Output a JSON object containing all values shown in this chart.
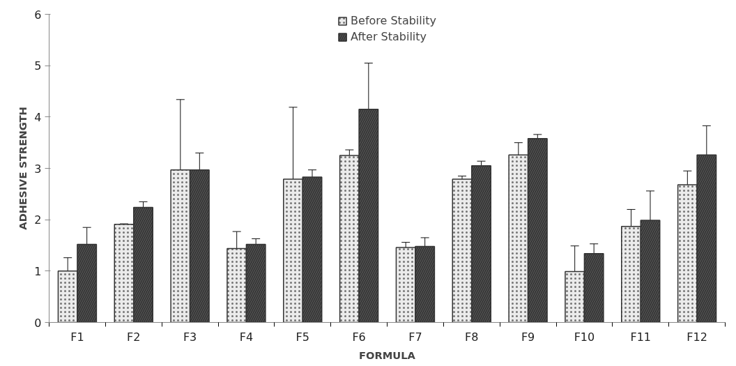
{
  "chart_data": {
    "type": "bar",
    "xlabel": "FORMULA",
    "ylabel": "ADHESIVE STRENGTH",
    "categories": [
      "F1",
      "F2",
      "F3",
      "F4",
      "F5",
      "F6",
      "F7",
      "F8",
      "F9",
      "F10",
      "F11",
      "F12"
    ],
    "series": [
      {
        "name": "Before Stability",
        "color": "#ebebeb",
        "values": [
          1.0,
          1.91,
          2.97,
          1.44,
          2.79,
          3.25,
          1.46,
          2.79,
          3.26,
          0.99,
          1.87,
          2.68
        ],
        "errors": [
          0.26,
          0.01,
          1.37,
          0.33,
          1.4,
          0.11,
          0.1,
          0.06,
          0.24,
          0.5,
          0.33,
          0.27
        ]
      },
      {
        "name": "After Stability",
        "color": "#4d4d4d",
        "values": [
          1.52,
          2.24,
          2.97,
          1.52,
          2.83,
          4.15,
          1.48,
          3.05,
          3.58,
          1.34,
          1.99,
          3.26
        ],
        "errors": [
          0.33,
          0.11,
          0.33,
          0.11,
          0.14,
          0.9,
          0.17,
          0.09,
          0.08,
          0.19,
          0.57,
          0.57
        ]
      }
    ],
    "ylim": [
      0,
      6
    ],
    "yticks": [
      0,
      1,
      2,
      3,
      4,
      5,
      6
    ],
    "grid": false,
    "legend": "top"
  }
}
